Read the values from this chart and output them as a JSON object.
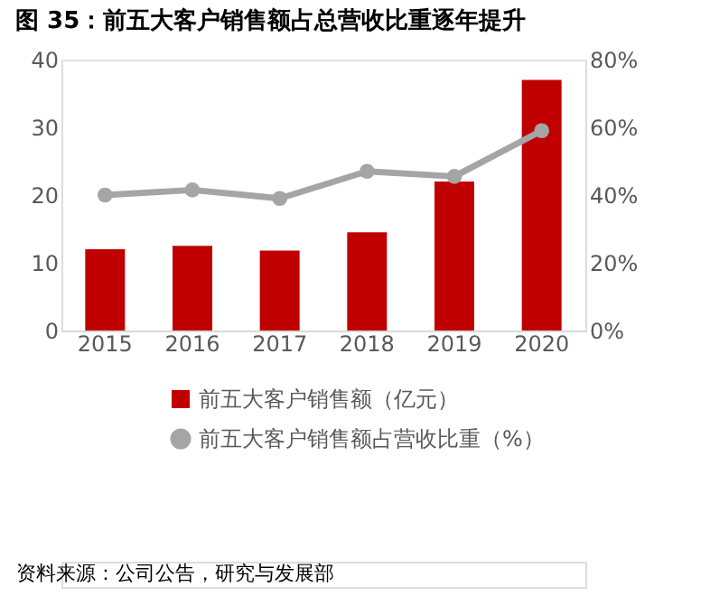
{
  "chart_data": {
    "type": "bar",
    "title": "图 35：前五大客户销售额占总营收比重逐年提升",
    "categories": [
      "2015",
      "2016",
      "2017",
      "2018",
      "2019",
      "2020"
    ],
    "series": [
      {
        "name": "前五大客户销售额（亿元）",
        "color": "#c00000",
        "values": [
          12,
          12.5,
          11.8,
          14.5,
          22,
          37
        ]
      },
      {
        "name": "前五大客户销售额占营收比重（%）",
        "type": "line",
        "axis": "y2",
        "color": "#a5a5a5",
        "marker": "circle",
        "values": [
          40,
          41.5,
          39,
          47,
          45.5,
          59
        ]
      }
    ],
    "ylim": [
      0,
      40
    ],
    "yticks": [
      0,
      10,
      20,
      30,
      40
    ],
    "y2lim": [
      0,
      80
    ],
    "y2ticks": [
      {
        "value": 0,
        "label": "0%"
      },
      {
        "value": 20,
        "label": "20%"
      },
      {
        "value": 40,
        "label": "40%"
      },
      {
        "value": 60,
        "label": "60%"
      },
      {
        "value": 80,
        "label": "80%"
      }
    ],
    "legend": "bottom",
    "grid": false,
    "annotations": [
      "资料来源：公司公告，研究与发展部"
    ]
  }
}
